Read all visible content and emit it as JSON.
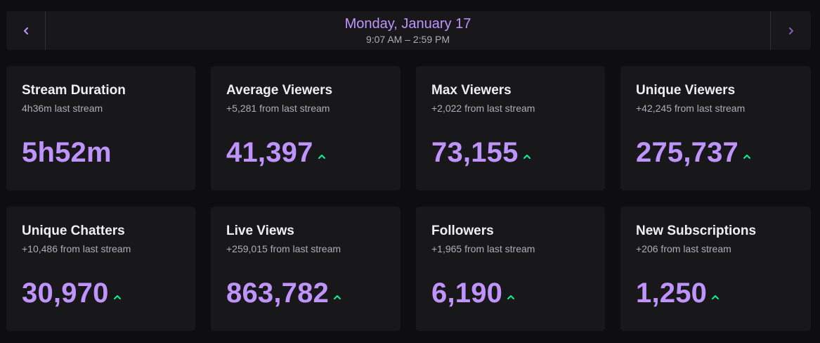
{
  "header": {
    "date": "Monday, January 17",
    "time_range": "9:07 AM – 2:59 PM",
    "prev_icon": "chevron-left-icon",
    "next_icon": "chevron-right-icon"
  },
  "colors": {
    "accent": "#bf94ff",
    "up": "#00f593",
    "card_bg": "#18181b",
    "page_bg": "#0e0e10"
  },
  "stats": [
    {
      "title": "Stream Duration",
      "sub": "4h36m last stream",
      "value": "5h52m",
      "trend": "none"
    },
    {
      "title": "Average Viewers",
      "sub": "+5,281 from last stream",
      "value": "41,397",
      "trend": "up"
    },
    {
      "title": "Max Viewers",
      "sub": "+2,022 from last stream",
      "value": "73,155",
      "trend": "up"
    },
    {
      "title": "Unique Viewers",
      "sub": "+42,245 from last stream",
      "value": "275,737",
      "trend": "up"
    },
    {
      "title": "Unique Chatters",
      "sub": "+10,486 from last stream",
      "value": "30,970",
      "trend": "up"
    },
    {
      "title": "Live Views",
      "sub": "+259,015 from last stream",
      "value": "863,782",
      "trend": "up"
    },
    {
      "title": "Followers",
      "sub": "+1,965 from last stream",
      "value": "6,190",
      "trend": "up"
    },
    {
      "title": "New Subscriptions",
      "sub": "+206 from last stream",
      "value": "1,250",
      "trend": "up"
    }
  ]
}
